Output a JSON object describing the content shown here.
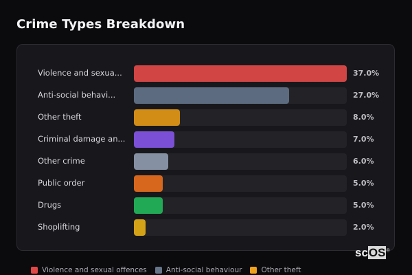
{
  "title": "Crime Types Breakdown",
  "chart_data": {
    "type": "bar",
    "orientation": "horizontal",
    "title": "Crime Types Breakdown",
    "categories": [
      "Violence and sexual offences",
      "Anti-social behaviour",
      "Other theft",
      "Criminal damage and arson",
      "Other crime",
      "Public order",
      "Drugs",
      "Shoplifting"
    ],
    "display_labels": [
      "Violence and sexua...",
      "Anti-social behavi...",
      "Other theft",
      "Criminal damage an...",
      "Other crime",
      "Public order",
      "Drugs",
      "Shoplifting"
    ],
    "values": [
      37.0,
      27.0,
      8.0,
      7.0,
      6.0,
      5.0,
      5.0,
      2.0
    ],
    "value_labels": [
      "37.0%",
      "27.0%",
      "8.0%",
      "7.0%",
      "6.0%",
      "5.0%",
      "5.0%",
      "2.0%"
    ],
    "colors": [
      "#d24545",
      "#5d6b80",
      "#d18d16",
      "#7b4fd6",
      "#8591a3",
      "#d7671d",
      "#22a956",
      "#d3a217"
    ],
    "unit": "%",
    "xlim": [
      0,
      37
    ],
    "grid": false,
    "legend_position": "bottom",
    "legend": [
      "Violence and sexual offences",
      "Anti-social behaviour",
      "Other theft"
    ]
  },
  "legend": [
    {
      "label": "Violence and sexual offences",
      "color": "#e04848"
    },
    {
      "label": "Anti-social behaviour",
      "color": "#677589"
    },
    {
      "label": "Other theft",
      "color": "#eea21b"
    }
  ],
  "watermark": {
    "prefix": "sc",
    "suffix": "OS",
    "mark": "®"
  }
}
